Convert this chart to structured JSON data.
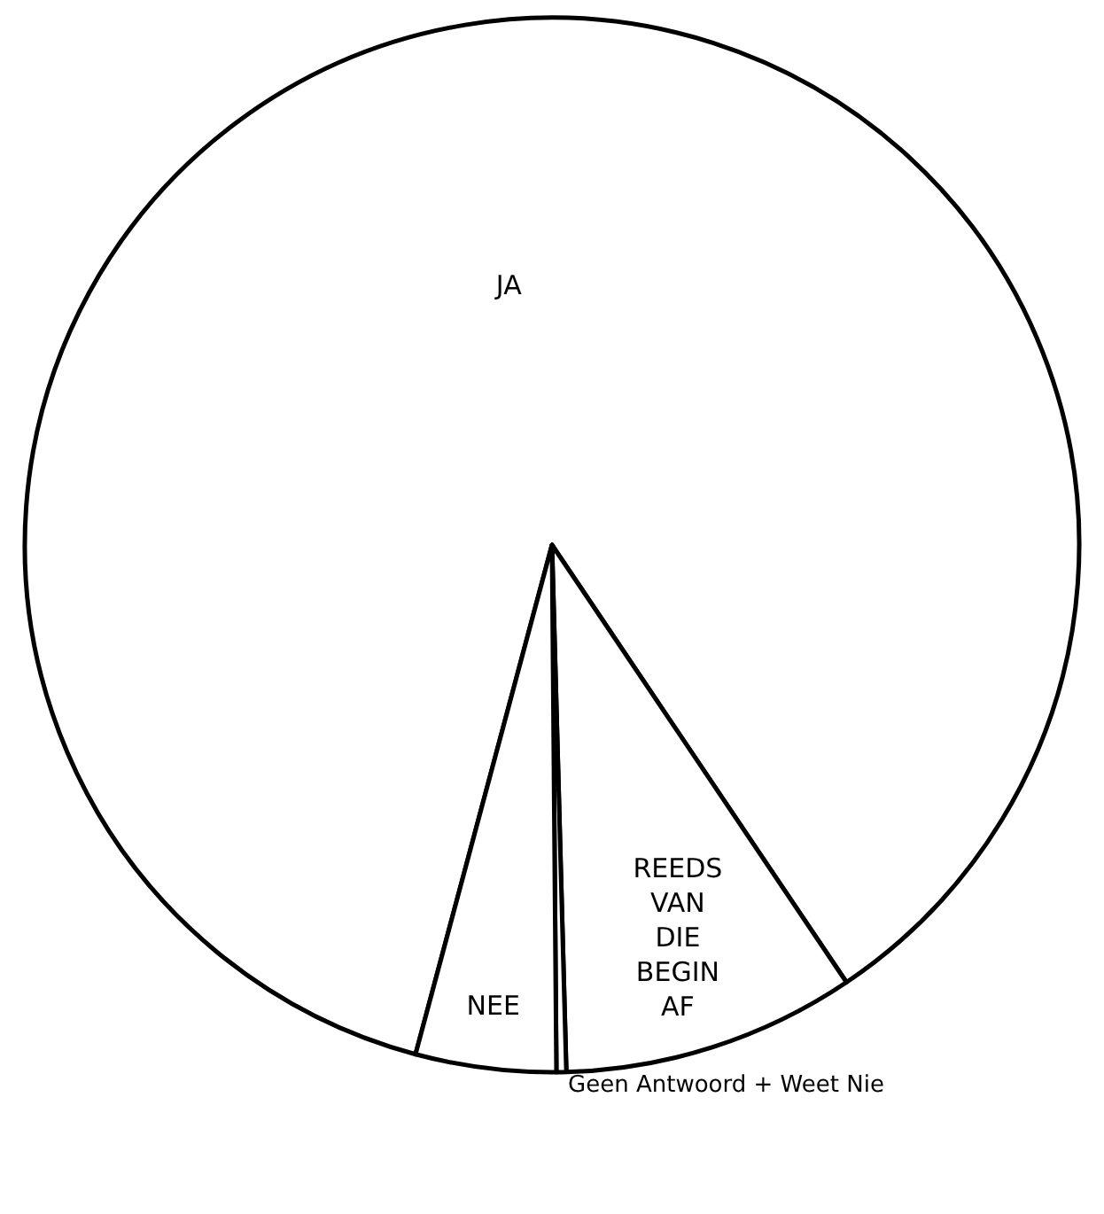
{
  "chart_data": {
    "type": "pie",
    "categories": [
      "JA",
      "REEDS VAN DIE BEGIN AF",
      "Geen Antwoord + Weet Nie",
      "NEE"
    ],
    "values": [
      86.4,
      9.0,
      0.3,
      4.3
    ],
    "colors": [
      "#ffffff",
      "#ffffff",
      "#ffffff",
      "#ffffff"
    ],
    "legend": false
  }
}
